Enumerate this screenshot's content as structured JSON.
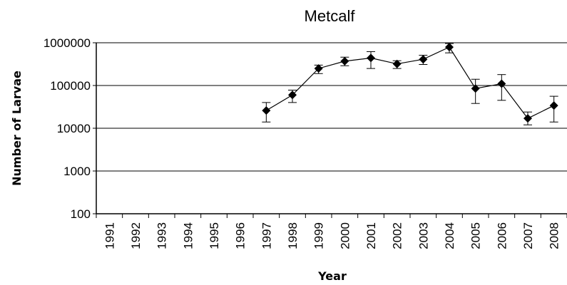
{
  "chart_data": {
    "type": "line",
    "title": "Metcalf",
    "xlabel": "Year",
    "ylabel": "Number of Larvae",
    "yscale": "log",
    "ylim": [
      100,
      1000000
    ],
    "yticks": [
      "100",
      "1000",
      "10000",
      "100000",
      "1000000"
    ],
    "grid": "horizontal",
    "marker": "diamond",
    "categories": [
      "1991",
      "1992",
      "1993",
      "1994",
      "1995",
      "1996",
      "1997",
      "1998",
      "1999",
      "2000",
      "2001",
      "2002",
      "2003",
      "2004",
      "2005",
      "2006",
      "2007",
      "2008"
    ],
    "values": [
      null,
      null,
      null,
      null,
      null,
      null,
      26000,
      60000,
      250000,
      370000,
      440000,
      320000,
      410000,
      790000,
      85000,
      110000,
      17000,
      34000
    ],
    "error_low": [
      null,
      null,
      null,
      null,
      null,
      null,
      14000,
      40000,
      190000,
      290000,
      250000,
      250000,
      310000,
      580000,
      38000,
      45000,
      12000,
      14000
    ],
    "error_high": [
      null,
      null,
      null,
      null,
      null,
      null,
      40000,
      78000,
      300000,
      460000,
      620000,
      380000,
      510000,
      960000,
      140000,
      180000,
      24000,
      56000
    ]
  }
}
